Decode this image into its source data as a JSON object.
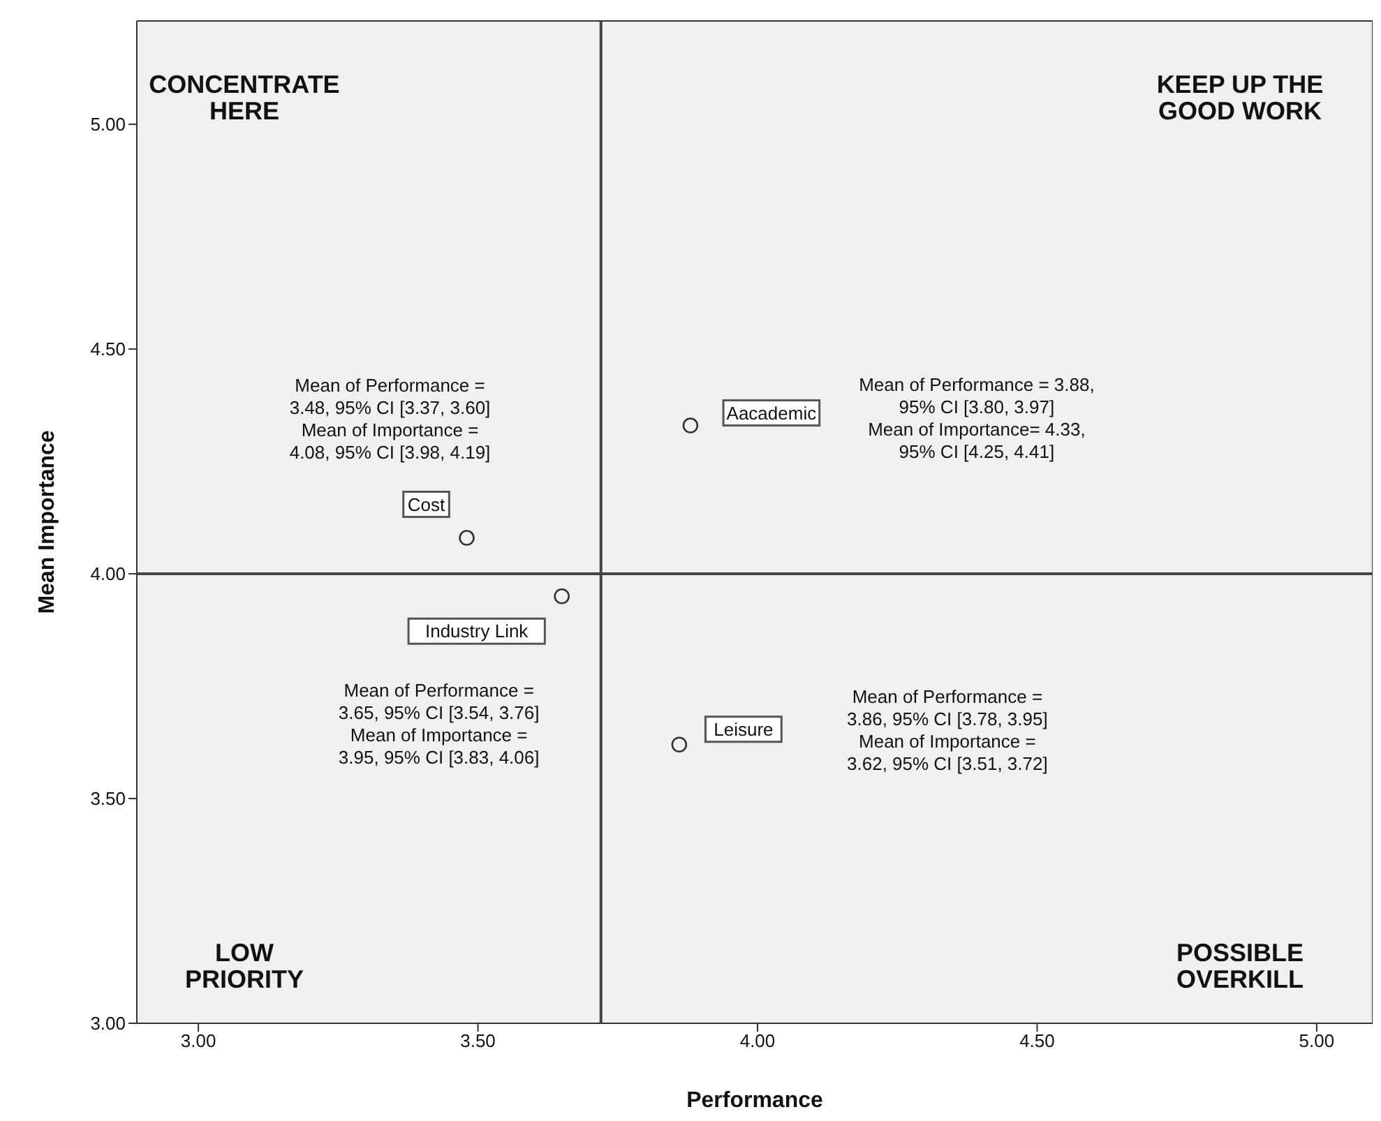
{
  "chart_data": {
    "type": "scatter",
    "xlabel": "Performance",
    "ylabel": "Mean Importance",
    "x": [
      3.88,
      3.48,
      3.65,
      3.86
    ],
    "series": [
      {
        "color": "#333333",
        "values": [
          4.33,
          4.08,
          3.95,
          3.62
        ],
        "value_labels": [
          "Aacademic",
          "Cost",
          "Industry Link",
          "Leisure"
        ]
      }
    ],
    "marker": "circle",
    "grid": false,
    "legend": false,
    "xlim": [
      2.89,
      5.1
    ],
    "ylim": [
      3.0,
      5.23
    ],
    "xticks": [
      {
        "value": 3,
        "label": "3.00"
      },
      {
        "value": 3.5,
        "label": "3.50"
      },
      {
        "value": 4,
        "label": "4.00"
      },
      {
        "value": 4.5,
        "label": "4.50"
      },
      {
        "value": 5,
        "label": "5.00"
      }
    ],
    "yticks": [
      {
        "value": 3,
        "label": "3.00"
      },
      {
        "value": 3.5,
        "label": "3.50"
      },
      {
        "value": 4,
        "label": "4.00"
      },
      {
        "value": 4.5,
        "label": "4.50"
      },
      {
        "value": 5,
        "label": "5.00"
      }
    ],
    "ref_lines": [
      {
        "axis": "x",
        "value": 3.72,
        "color": "#444444"
      },
      {
        "axis": "y",
        "value": 4.0,
        "color": "#444444"
      }
    ],
    "annotations": [
      "Mean of Performance = 3.88,\n95% CI [3.80, 3.97]\nMean of Importance= 4.33,\n95% CI [4.25, 4.41]",
      "Mean of Performance =\n3.48, 95% CI [3.37, 3.60]\nMean of Importance =\n4.08, 95% CI [3.98, 4.19]",
      "Mean of Performance =\n3.65, 95% CI [3.54, 3.76]\nMean of Importance =\n3.95, 95% CI [3.83, 4.06]",
      "Mean of Performance =\n3.86, 95% CI [3.78, 3.95]\nMean of Importance =\n3.62, 95% CI [3.51, 3.72]",
      "CONCENTRATE\nHERE",
      "KEEP UP THE\nGOOD WORK",
      "LOW\nPRIORITY",
      "POSSIBLE\nOVERKILL"
    ]
  }
}
